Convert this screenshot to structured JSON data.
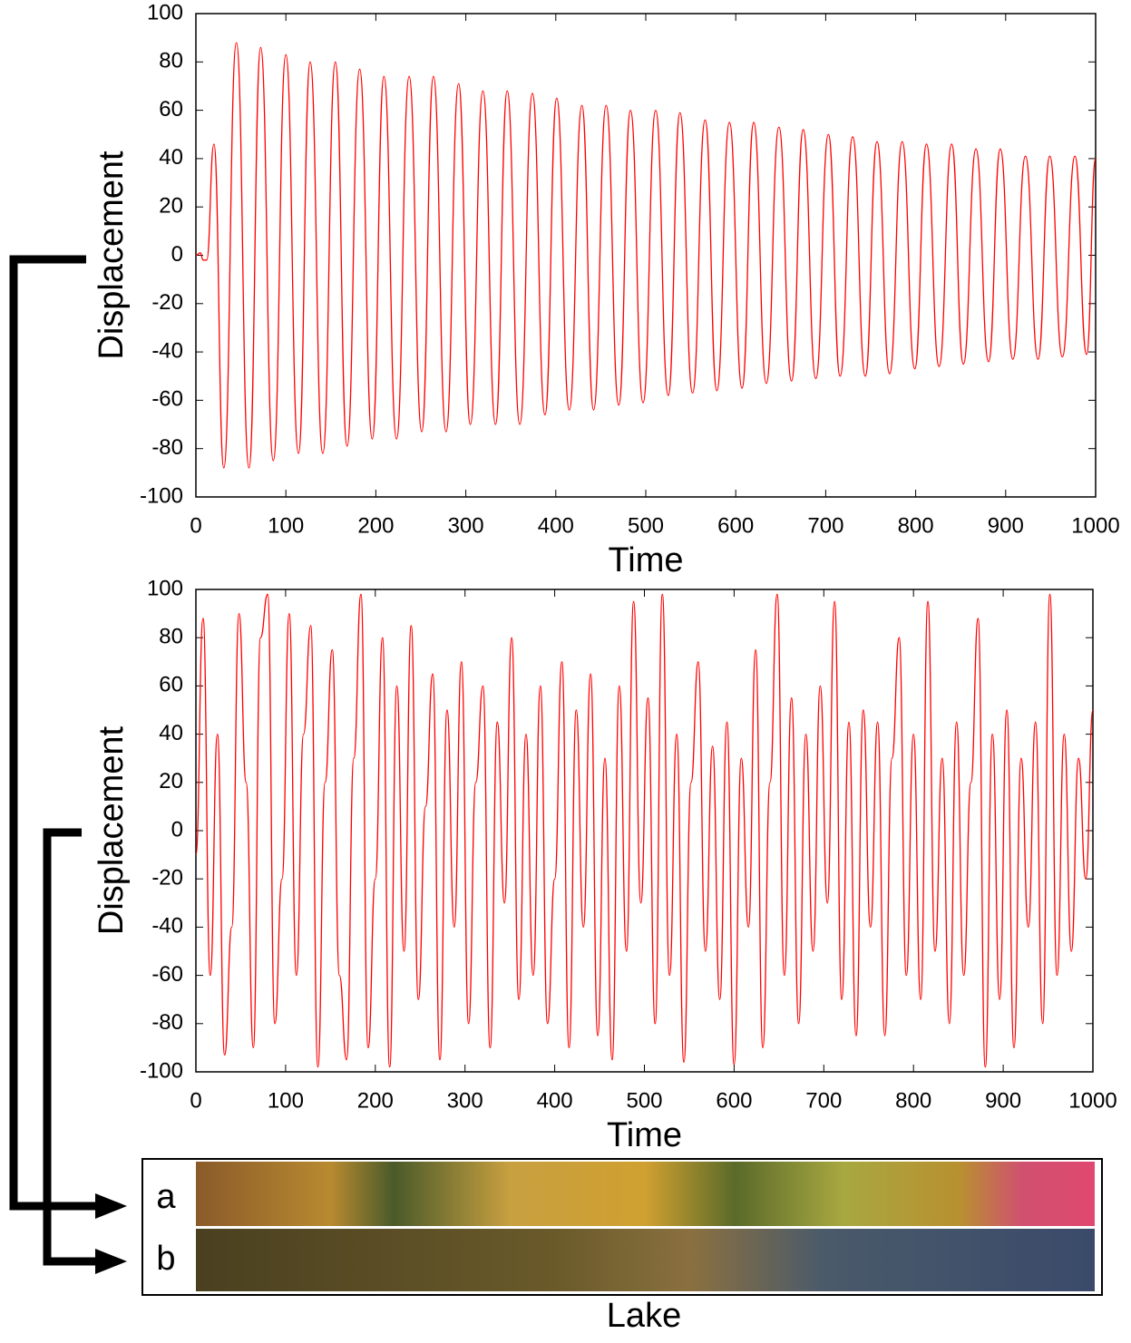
{
  "chart_data": [
    {
      "type": "line",
      "xlabel": "Time",
      "ylabel": "Displacement",
      "xlim": [
        0,
        1000
      ],
      "ylim": [
        -100,
        100
      ],
      "xticks": [
        0,
        100,
        200,
        300,
        400,
        500,
        600,
        700,
        800,
        900,
        1000
      ],
      "yticks": [
        -100,
        -80,
        -60,
        -40,
        -20,
        0,
        20,
        40,
        60,
        80,
        100
      ],
      "series": [
        {
          "color": "#ff0000",
          "x": [
            0,
            5,
            8,
            12,
            20,
            31,
            45,
            59,
            72,
            86,
            100,
            114,
            127,
            141,
            155,
            168,
            182,
            196,
            209,
            223,
            237,
            251,
            264,
            278,
            292,
            305,
            319,
            333,
            346,
            360,
            374,
            388,
            401,
            415,
            429,
            442,
            456,
            470,
            483,
            497,
            511,
            525,
            538,
            552,
            566,
            579,
            593,
            607,
            620,
            634,
            648,
            662,
            675,
            689,
            703,
            716,
            730,
            744,
            757,
            771,
            785,
            799,
            812,
            826,
            840,
            853,
            867,
            881,
            894,
            908,
            922,
            936,
            949,
            963,
            977,
            990,
            1000
          ],
          "values": [
            0,
            1,
            -2,
            -2,
            46,
            -88,
            88,
            -88,
            86,
            -85,
            83,
            -82,
            80,
            -82,
            80,
            -79,
            77,
            -76,
            74,
            -76,
            74,
            -73,
            74,
            -73,
            71,
            -70,
            68,
            -70,
            68,
            -70,
            67,
            -66,
            65,
            -64,
            62,
            -64,
            62,
            -62,
            60,
            -61,
            60,
            -58,
            59,
            -57,
            56,
            -56,
            55,
            -55,
            55,
            -53,
            53,
            -52,
            52,
            -51,
            50,
            -50,
            49,
            -50,
            47,
            -49,
            47,
            -47,
            46,
            -46,
            46,
            -45,
            44,
            -44,
            44,
            -43,
            41,
            -43,
            41,
            -42,
            41,
            -41,
            40
          ]
        }
      ]
    },
    {
      "type": "line",
      "xlabel": "Time",
      "ylabel": "Displacement",
      "xlim": [
        0,
        1000
      ],
      "ylim": [
        -100,
        100
      ],
      "xticks": [
        0,
        100,
        200,
        300,
        400,
        500,
        600,
        700,
        800,
        900,
        1000
      ],
      "yticks": [
        -100,
        -80,
        -60,
        -40,
        -20,
        0,
        20,
        40,
        60,
        80,
        100
      ],
      "series": [
        {
          "color": "#ff0000",
          "x": [
            0,
            8,
            16,
            24,
            32,
            40,
            48,
            56,
            64,
            72,
            80,
            88,
            96,
            104,
            112,
            120,
            128,
            136,
            144,
            152,
            160,
            168,
            176,
            184,
            192,
            200,
            208,
            216,
            224,
            232,
            240,
            248,
            256,
            264,
            272,
            280,
            288,
            296,
            304,
            312,
            320,
            328,
            336,
            344,
            352,
            360,
            368,
            376,
            384,
            392,
            400,
            408,
            416,
            424,
            432,
            440,
            448,
            456,
            464,
            472,
            480,
            488,
            496,
            504,
            512,
            520,
            528,
            536,
            544,
            552,
            560,
            568,
            576,
            584,
            592,
            600,
            608,
            616,
            624,
            632,
            640,
            648,
            656,
            664,
            672,
            680,
            688,
            696,
            704,
            712,
            720,
            728,
            736,
            744,
            752,
            760,
            768,
            776,
            784,
            792,
            800,
            808,
            816,
            824,
            832,
            840,
            848,
            856,
            864,
            872,
            880,
            888,
            896,
            904,
            912,
            920,
            928,
            936,
            944,
            952,
            960,
            968,
            976,
            984,
            992,
            1000
          ],
          "values": [
            -10,
            88,
            -60,
            40,
            -93,
            -40,
            90,
            20,
            -90,
            80,
            98,
            -80,
            -20,
            90,
            -60,
            40,
            85,
            -98,
            20,
            75,
            -60,
            -95,
            30,
            98,
            -90,
            -20,
            80,
            -98,
            60,
            -50,
            85,
            -70,
            10,
            65,
            -95,
            50,
            -40,
            70,
            -80,
            20,
            60,
            -90,
            45,
            -30,
            80,
            -70,
            40,
            -60,
            60,
            -80,
            -20,
            70,
            -90,
            50,
            -40,
            65,
            -85,
            30,
            -95,
            60,
            -50,
            95,
            -30,
            55,
            -80,
            98,
            -60,
            40,
            -96,
            20,
            70,
            -50,
            35,
            -70,
            45,
            -97,
            30,
            -40,
            75,
            -90,
            20,
            98,
            -60,
            55,
            -80,
            40,
            -50,
            60,
            -30,
            95,
            -70,
            45,
            -85,
            50,
            -40,
            45,
            -85,
            30,
            80,
            -60,
            40,
            -70,
            95,
            -50,
            30,
            -80,
            45,
            -60,
            20,
            88,
            -98,
            40,
            -70,
            50,
            -90,
            30,
            -40,
            45,
            -80,
            98,
            -60,
            40,
            -50,
            30,
            -20,
            50
          ]
        }
      ]
    }
  ],
  "panel": {
    "rows": [
      "a",
      "b"
    ],
    "caption": "Lake"
  }
}
